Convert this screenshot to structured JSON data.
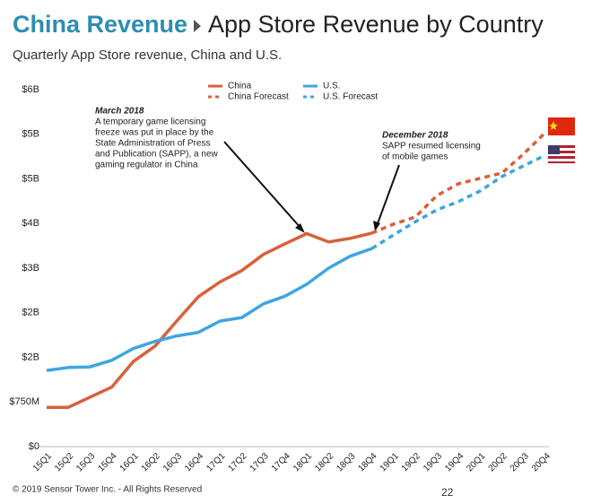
{
  "chart_data": {
    "type": "line",
    "breadcrumb": "China Revenue",
    "title": "App Store Revenue by Country",
    "subtitle": "Quarterly App Store revenue, China and U.S.",
    "categories": [
      "15Q1",
      "15Q2",
      "15Q3",
      "15Q4",
      "16Q1",
      "16Q2",
      "16Q3",
      "16Q4",
      "17Q1",
      "17Q2",
      "17Q3",
      "17Q4",
      "18Q1",
      "18Q2",
      "18Q3",
      "18Q4",
      "19Q1",
      "19Q2",
      "19Q3",
      "19Q4",
      "20Q1",
      "20Q2",
      "20Q3",
      "20Q4"
    ],
    "ylim": [
      0,
      6
    ],
    "yticks": [
      {
        "value": 0,
        "label": "$0"
      },
      {
        "value": 0.75,
        "label": "$750M"
      },
      {
        "value": 1.5,
        "label": "$2B"
      },
      {
        "value": 2.25,
        "label": "$2B"
      },
      {
        "value": 3,
        "label": "$3B"
      },
      {
        "value": 3.75,
        "label": "$4B"
      },
      {
        "value": 4.5,
        "label": "$5B"
      },
      {
        "value": 5.25,
        "label": "$5B"
      },
      {
        "value": 6,
        "label": "$6B"
      }
    ],
    "grid": false,
    "series": [
      {
        "name": "China",
        "color": "#d9603b",
        "dashed": false,
        "values": [
          0.66,
          0.66,
          0.83,
          1.0,
          1.43,
          1.69,
          2.11,
          2.52,
          2.77,
          2.96,
          3.23,
          3.41,
          3.58,
          3.44,
          3.5,
          3.59,
          null,
          null,
          null,
          null,
          null,
          null,
          null,
          null
        ]
      },
      {
        "name": "U.S.",
        "color": "#3ea6e0",
        "dashed": false,
        "values": [
          1.28,
          1.33,
          1.34,
          1.45,
          1.65,
          1.77,
          1.86,
          1.92,
          2.11,
          2.17,
          2.4,
          2.53,
          2.73,
          3.0,
          3.2,
          3.33,
          null,
          null,
          null,
          null,
          null,
          null,
          null,
          null
        ]
      },
      {
        "name": "China Forecast",
        "color": "#d9603b",
        "dashed": true,
        "values": [
          null,
          null,
          null,
          null,
          null,
          null,
          null,
          null,
          null,
          null,
          null,
          null,
          null,
          null,
          null,
          3.59,
          3.74,
          3.86,
          4.22,
          4.42,
          4.51,
          4.6,
          4.92,
          5.28
        ]
      },
      {
        "name": "U.S. Forecast",
        "color": "#3ea6e0",
        "dashed": true,
        "values": [
          null,
          null,
          null,
          null,
          null,
          null,
          null,
          null,
          null,
          null,
          null,
          null,
          null,
          null,
          null,
          3.33,
          3.56,
          3.78,
          3.98,
          4.12,
          4.3,
          4.54,
          4.72,
          4.9
        ]
      }
    ],
    "annotations": [
      {
        "title": "March 2018",
        "lines": [
          "A temporary game licensing",
          "freeze was put in place by the",
          "State Administration of Press",
          "and Publication (SAPP), a new",
          "gaming regulator in China"
        ]
      },
      {
        "title": "December 2018",
        "lines": [
          "SAPP resumed licensing",
          "of mobile games"
        ]
      }
    ],
    "footer": "© 2019 Sensor Tower Inc. - All Rights Reserved",
    "page_number": "22"
  }
}
